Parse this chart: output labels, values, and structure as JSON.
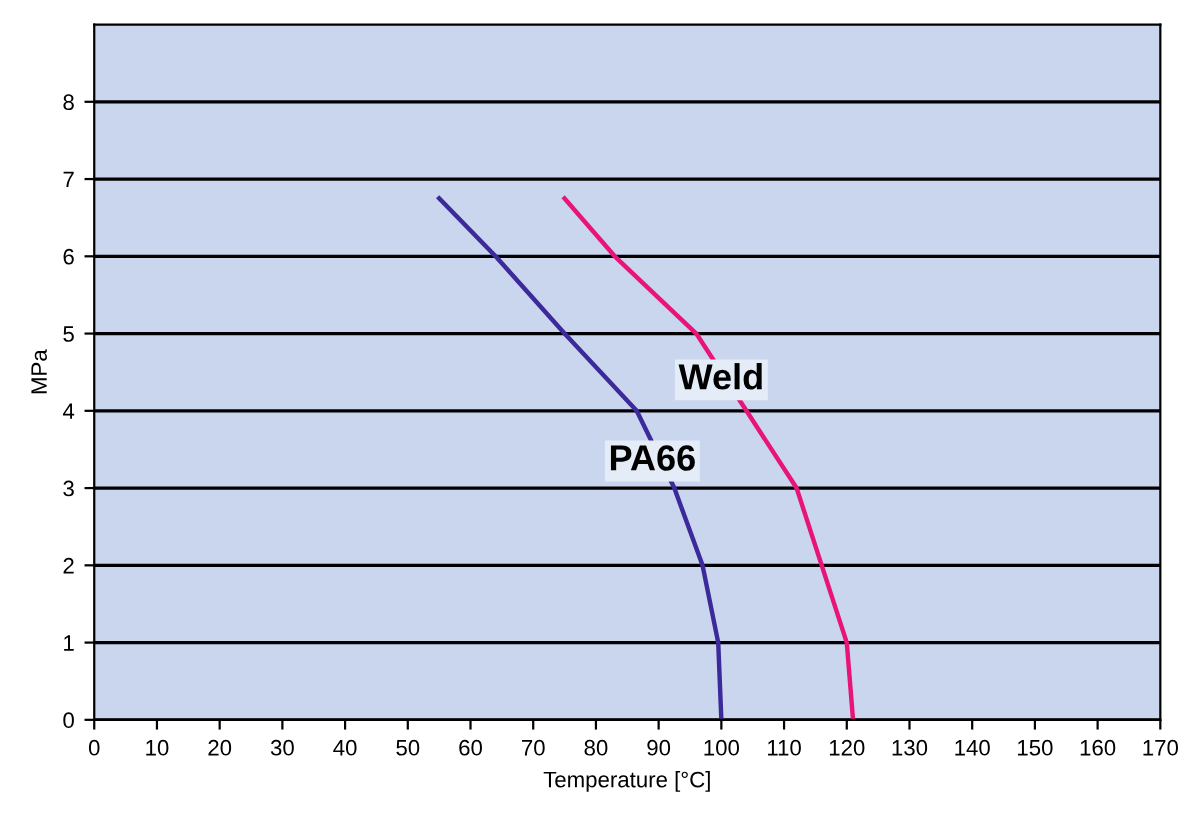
{
  "chart_data": {
    "type": "line",
    "xlabel": "Temperature [°C]",
    "ylabel": "MPa",
    "x": [
      55,
      64,
      75,
      86.5,
      92.5,
      97,
      99.5,
      100
    ],
    "series": [
      {
        "color": "#3d2a9a",
        "values": [
          6.75,
          6,
          5,
          4,
          3,
          2,
          1,
          0
        ]
      },
      {
        "color": "#e8147a",
        "x": [
          75,
          83,
          96,
          104,
          112,
          116,
          120,
          121
        ],
        "values": [
          6.75,
          6,
          5,
          4,
          3,
          2,
          1,
          0
        ]
      }
    ],
    "annotations": [
      {
        "text": "Weld",
        "x": 100,
        "y": 4.4
      },
      {
        "text": "PA66",
        "x": 89,
        "y": 3.35
      }
    ],
    "xlim": [
      0,
      170
    ],
    "xticks": [
      0,
      10,
      20,
      30,
      40,
      50,
      60,
      70,
      80,
      90,
      100,
      110,
      120,
      130,
      140,
      150,
      160,
      170
    ],
    "ylim": [
      0,
      9
    ],
    "yticks": [
      0,
      1,
      2,
      3,
      4,
      5,
      6,
      7,
      8
    ],
    "grid": "y",
    "marker": "none",
    "line_style": "solid",
    "legend": false
  }
}
